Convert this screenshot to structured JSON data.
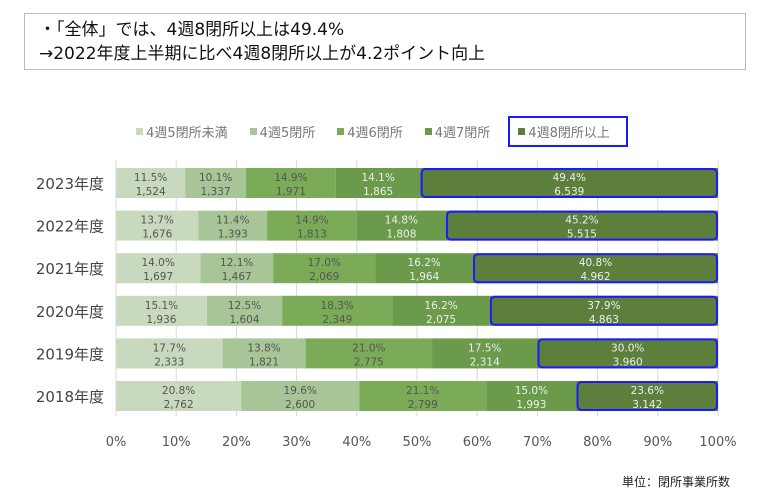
{
  "header": {
    "line1": "・「全体」では、4週8閉所以上は49.4%",
    "line2": "→2022年度上半期に比べ4週8閉所以上が4.2ポイント向上"
  },
  "unit_label": "単位：閉所事業所数",
  "chart_data": {
    "type": "bar",
    "orientation": "horizontal",
    "stacked": true,
    "categories": [
      "2023年度",
      "2022年度",
      "2021年度",
      "2020年度",
      "2019年度",
      "2018年度"
    ],
    "xlim": [
      0,
      100
    ],
    "xticks": [
      "0%",
      "10%",
      "20%",
      "30%",
      "40%",
      "50%",
      "60%",
      "70%",
      "80%",
      "90%",
      "100%"
    ],
    "grid": true,
    "legend": "top",
    "highlight_series": "4週8閉所以上",
    "highlight_color": "#1a1aff",
    "series": [
      {
        "name": "4週5閉所未満",
        "color": "#c8d9be",
        "values": [
          11.5,
          13.7,
          14.0,
          15.1,
          17.7,
          20.8
        ],
        "counts": [
          "1,524",
          "1,676",
          "1,697",
          "1,936",
          "2,333",
          "2,762"
        ]
      },
      {
        "name": "4週5閉所",
        "color": "#a7c597",
        "values": [
          10.1,
          11.4,
          12.1,
          12.5,
          13.8,
          19.6
        ],
        "counts": [
          "1,337",
          "1,393",
          "1,467",
          "1,604",
          "1,821",
          "2,600"
        ]
      },
      {
        "name": "4週6閉所",
        "color": "#7bab57",
        "values": [
          14.9,
          14.9,
          17.0,
          18.3,
          21.0,
          21.1
        ],
        "counts": [
          "1,971",
          "1,813",
          "2,069",
          "2,349",
          "2,775",
          "2,799"
        ]
      },
      {
        "name": "4週7閉所",
        "color": "#6a9a4a",
        "values": [
          14.1,
          14.8,
          16.2,
          16.2,
          17.5,
          15.0
        ],
        "counts": [
          "1,865",
          "1,808",
          "1,964",
          "2,075",
          "2,314",
          "1,993"
        ]
      },
      {
        "name": "4週8閉所以上",
        "color": "#5c7f3c",
        "values": [
          49.4,
          45.2,
          40.8,
          37.9,
          30.0,
          23.6
        ],
        "counts": [
          "6.539",
          "5.515",
          "4.962",
          "4.863",
          "3.960",
          "3.142"
        ]
      }
    ]
  }
}
